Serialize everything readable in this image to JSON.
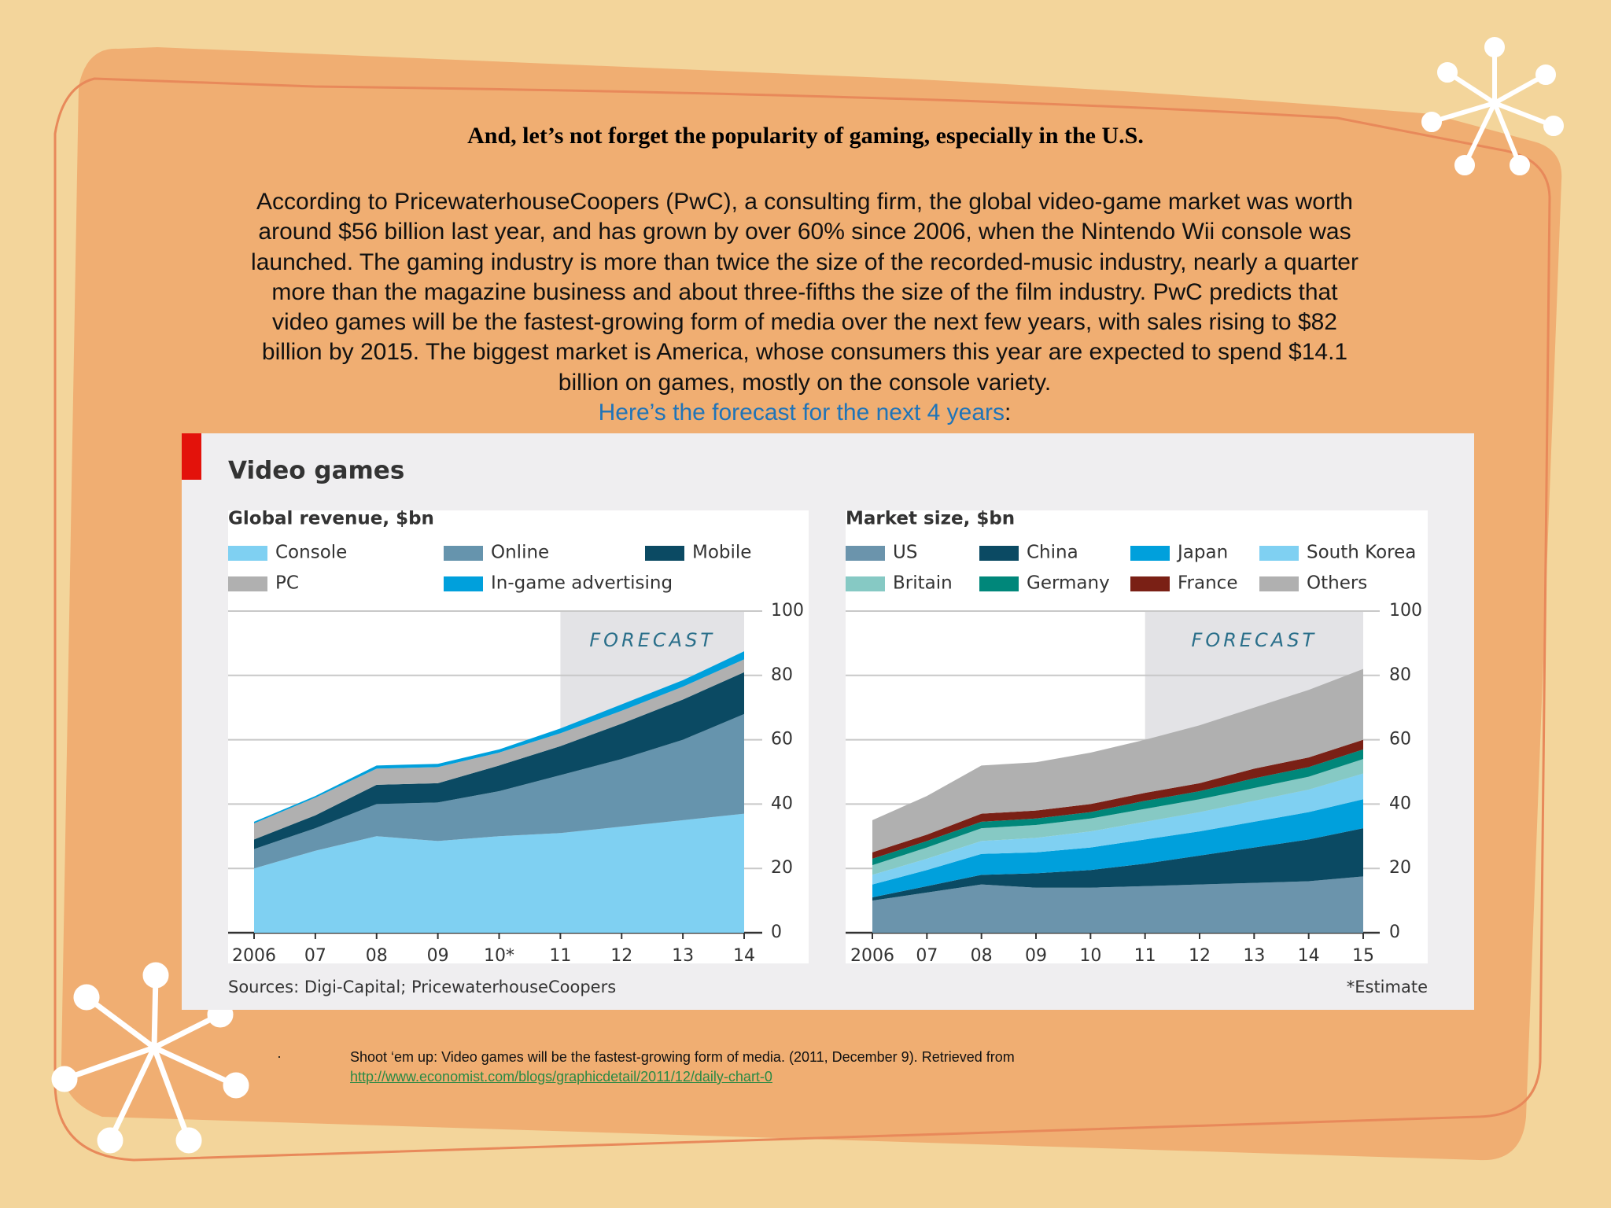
{
  "slide": {
    "heading": "And, let’s not forget the  popularity of gaming, especially in the U.S.",
    "paragraph": "According to PricewaterhouseCoopers (PwC), a consulting firm, the global video-game market was worth around $56 billion last year, and has grown by over 60% since 2006, when the Nintendo Wii console was launched. The gaming industry is more than twice the size of the recorded-music industry, nearly a quarter more than the magazine business and about three-fifths the size of the film industry. PwC predicts that video games will be the fastest-growing form of media over the next few years, with sales rising to $82 billion by 2015. The biggest market is America, whose consumers this year are expected to spend $14.1 billion on games, mostly on the console variety.",
    "link_text": "Here’s the forecast for the next 4 years",
    "link_suffix": ":"
  },
  "figure": {
    "title": "Video games",
    "source": "Sources: Digi-Capital; PricewaterhouseCoopers",
    "note": "*Estimate"
  },
  "chart_data": [
    {
      "type": "stacked_area",
      "title": "Global revenue, $bn",
      "categories": [
        "2006",
        "07",
        "08",
        "09",
        "10*",
        "11",
        "12",
        "13",
        "14"
      ],
      "forecast": {
        "label": "FORECAST",
        "from": "11"
      },
      "ylim": [
        0,
        100
      ],
      "yticks": [
        0,
        20,
        40,
        60,
        80,
        100
      ],
      "grid": true,
      "series": [
        {
          "name": "Console",
          "color": "#7fd0f2",
          "values": [
            20,
            25.5,
            30,
            28.5,
            30,
            31,
            33,
            35,
            37
          ]
        },
        {
          "name": "Online",
          "color": "#6694ad",
          "values": [
            6,
            7,
            10,
            12,
            14,
            18,
            21,
            25,
            31
          ]
        },
        {
          "name": "Mobile",
          "color": "#0b4a63",
          "values": [
            3,
            4,
            6,
            6,
            8,
            9,
            11,
            12.5,
            13
          ]
        },
        {
          "name": "PC",
          "color": "#b0b0b0",
          "values": [
            5,
            5.5,
            5,
            5,
            4,
            4,
            4,
            4,
            4
          ]
        },
        {
          "name": "In-game advertising",
          "color": "#00a0dc",
          "values": [
            0.5,
            0.5,
            1,
            1,
            1,
            1.5,
            2,
            2,
            2.5
          ]
        }
      ]
    },
    {
      "type": "stacked_area",
      "title": "Market size, $bn",
      "categories": [
        "2006",
        "07",
        "08",
        "09",
        "10",
        "11",
        "12",
        "13",
        "14",
        "15"
      ],
      "forecast": {
        "label": "FORECAST",
        "from": "11"
      },
      "ylim": [
        0,
        100
      ],
      "yticks": [
        0,
        20,
        40,
        60,
        80,
        100
      ],
      "grid": true,
      "series": [
        {
          "name": "US",
          "color": "#6b94ac",
          "values": [
            10,
            12.5,
            15,
            14,
            14,
            14.5,
            15,
            15.5,
            16,
            17.5
          ]
        },
        {
          "name": "China",
          "color": "#0b4a63",
          "values": [
            1,
            2,
            3,
            4.5,
            5.5,
            7,
            9,
            11,
            13,
            15
          ]
        },
        {
          "name": "Japan",
          "color": "#00a0dc",
          "values": [
            4,
            5,
            6.5,
            6.5,
            7,
            7.5,
            7.5,
            8,
            8.5,
            9
          ]
        },
        {
          "name": "South Korea",
          "color": "#7fd0f2",
          "values": [
            3,
            3.5,
            4,
            4.5,
            5,
            5.5,
            6,
            6.5,
            7,
            8
          ]
        },
        {
          "name": "Britain",
          "color": "#86c9c4",
          "values": [
            3,
            3.5,
            4,
            4,
            4,
            4,
            4,
            4,
            4,
            4.5
          ]
        },
        {
          "name": "Germany",
          "color": "#00877a",
          "values": [
            2,
            2,
            2,
            2,
            2,
            2.5,
            2.5,
            3,
            3,
            3
          ]
        },
        {
          "name": "France",
          "color": "#7a2015",
          "values": [
            2,
            2,
            2.5,
            2.5,
            2.5,
            2.5,
            2.5,
            3,
            3,
            3
          ]
        },
        {
          "name": "Others",
          "color": "#b0b0b0",
          "values": [
            10,
            12,
            15,
            15,
            16,
            16.5,
            18,
            19,
            21,
            22
          ]
        }
      ]
    }
  ],
  "footnote": {
    "bullet": "·",
    "citation": "Shoot ‘em up: Video games will be the fastest-growing form of media. (2011, December 9). Retrieved from",
    "url": "http://www.economist.com/blogs/graphicdetail/2011/12/daily-chart-0"
  }
}
